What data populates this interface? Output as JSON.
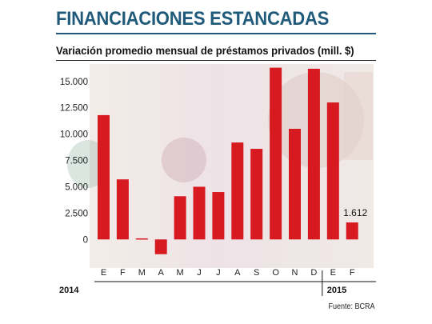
{
  "headline": "FINANCIACIONES ESTANCADAS",
  "source": "Fuente: BCRA",
  "colors": {
    "bar": "#d71920",
    "headline": "#1f5a7a"
  },
  "chart_data": {
    "type": "bar",
    "title": "Variación promedio mensual de préstamos privados (mill. $)",
    "categories": [
      "E",
      "F",
      "M",
      "A",
      "M",
      "J",
      "J",
      "A",
      "S",
      "O",
      "N",
      "D",
      "E",
      "F"
    ],
    "values": [
      11800,
      5700,
      100,
      -1400,
      4100,
      5000,
      4500,
      9200,
      8600,
      16300,
      10500,
      16200,
      13000,
      1612
    ],
    "ylim": [
      -1800,
      16500
    ],
    "yticks": [
      0,
      2500,
      5000,
      7500,
      10000,
      12500,
      15000
    ],
    "ytick_labels": [
      "0",
      "2.500",
      "5.000",
      "7.500",
      "10.000",
      "12.500",
      "15.000"
    ],
    "year_groups": [
      {
        "label": "2014",
        "start": 0,
        "end": 11
      },
      {
        "label": "2015",
        "start": 12,
        "end": 13
      }
    ],
    "data_labels": [
      {
        "index": 13,
        "text": "1.612"
      }
    ],
    "grid": false,
    "legend": "none"
  }
}
